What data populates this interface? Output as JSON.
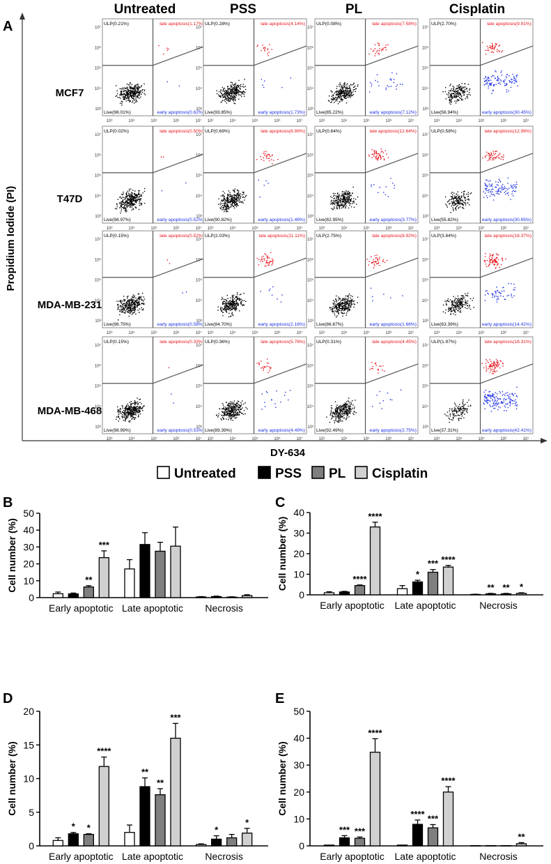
{
  "panel_letters": [
    "A",
    "B",
    "C",
    "D",
    "E"
  ],
  "flow": {
    "column_titles": [
      "Untreated",
      "PSS",
      "PL",
      "Cisplatin"
    ],
    "row_labels": [
      "MCF7",
      "T47D",
      "MDA-MB-231",
      "MDA-MB-468"
    ],
    "y_axis_label": "Propidium Iodide (PI)",
    "x_axis_label": "DY-634",
    "tick_labels": [
      "10³",
      "10⁴",
      "10⁵",
      "10⁶",
      "10⁷"
    ],
    "colors": {
      "live": "#000000",
      "late": "#e8141c",
      "early": "#1a2ee6",
      "gate": "#555555"
    },
    "quadrants": [
      [
        {
          "ulp": "ULP(0.21%)",
          "late": "late apoptosis(1.17%)",
          "live": "Live(98.01%)",
          "early": "early apoptosis(0.62%)"
        },
        {
          "ulp": "ULP(0.28%)",
          "late": "late apoptosis(4.14%)",
          "live": "Live(93.85%)",
          "early": "early apoptosis(1.73%)"
        },
        {
          "ulp": "ULP(0.08%)",
          "late": "late apoptosis(7.58%)",
          "live": "Live(85.22%)",
          "early": "early apoptosis(7.12%)"
        },
        {
          "ulp": "ULP(2.70%)",
          "late": "late apoptosis(9.91%)",
          "live": "Live(56.94%)",
          "early": "early apoptosis(30.45%)"
        }
      ],
      [
        {
          "ulp": "ULP(0.02%)",
          "late": "late apoptosis(0.50%)",
          "live": "Live(98.97%)",
          "early": "early apoptosis(0.52%)"
        },
        {
          "ulp": "ULP(0.69%)",
          "late": "late apoptosis(6.99%)",
          "live": "Live(90.82%)",
          "early": "early apoptosis(1.49%)"
        },
        {
          "ulp": "ULP(0.64%)",
          "late": "late apoptosis(12.64%)",
          "live": "Live(82.95%)",
          "early": "early apoptosis(3.77%)"
        },
        {
          "ulp": "ULP(0.58%)",
          "late": "late apoptosis(12.96%)",
          "live": "Live(55.82%)",
          "early": "early apoptosis(30.65%)"
        }
      ],
      [
        {
          "ulp": "ULP(0.15%)",
          "late": "late apoptosis(0.52%)",
          "live": "Live(98.75%)",
          "early": "early apoptosis(0.58%)"
        },
        {
          "ulp": "ULP(2.03%)",
          "late": "late apoptosis(11.11%)",
          "live": "Live(84.70%)",
          "early": "early apoptosis(2.16%)"
        },
        {
          "ulp": "ULP(2.75%)",
          "late": "late apoptosis(8.92%)",
          "live": "Live(86.67%)",
          "early": "early apoptosis(1.66%)"
        },
        {
          "ulp": "ULP(3.84%)",
          "late": "late apoptosis(18.37%)",
          "live": "Live(63.39%)",
          "early": "early apoptosis(14.41%)"
        }
      ],
      [
        {
          "ulp": "ULP(0.15%)",
          "late": "late apoptosis(0.33%)",
          "live": "Live(98.99%)",
          "early": "early apoptosis(0.53%)"
        },
        {
          "ulp": "ULP(0.36%)",
          "late": "late apoptosis(5.76%)",
          "live": "Live(89.39%)",
          "early": "early apoptosis(4.49%)"
        },
        {
          "ulp": "ULP(0.31%)",
          "late": "late apoptosis(4.45%)",
          "live": "Live(92.49%)",
          "early": "early apoptosis(2.75%)"
        },
        {
          "ulp": "ULP(1.97%)",
          "late": "late apoptosis(18.31%)",
          "live": "Live(37.31%)",
          "early": "early apoptosis(42.41%)"
        }
      ]
    ]
  },
  "legend": {
    "items": [
      {
        "label": "Untreated",
        "color": "#ffffff"
      },
      {
        "label": "PSS",
        "color": "#000000"
      },
      {
        "label": "PL",
        "color": "#7f7f7f"
      },
      {
        "label": "Cisplatin",
        "color": "#d0d0d0"
      }
    ]
  },
  "chart_data": [
    {
      "panel": "B",
      "type": "bar",
      "ylabel": "Cell number (%)",
      "ylim": [
        0,
        50
      ],
      "yticks": [
        0,
        10,
        20,
        30,
        40,
        50
      ],
      "categories": [
        "Early apoptotic",
        "Late apoptotic",
        "Necrosis"
      ],
      "series": [
        {
          "name": "Untreated",
          "values": [
            2.3,
            17.0,
            0.4
          ],
          "errors": [
            1.0,
            5.5,
            0.2
          ],
          "sig": [
            "",
            "",
            ""
          ]
        },
        {
          "name": "PSS",
          "values": [
            2.2,
            31.5,
            0.6
          ],
          "errors": [
            0.5,
            7.0,
            0.3
          ],
          "sig": [
            "",
            "",
            ""
          ]
        },
        {
          "name": "PL",
          "values": [
            6.3,
            27.5,
            0.3
          ],
          "errors": [
            0.8,
            5.3,
            0.2
          ],
          "sig": [
            "**",
            "",
            ""
          ]
        },
        {
          "name": "Cisplatin",
          "values": [
            23.7,
            30.5,
            1.2
          ],
          "errors": [
            4.0,
            11.3,
            0.5
          ],
          "sig": [
            "***",
            "",
            ""
          ]
        }
      ]
    },
    {
      "panel": "C",
      "type": "bar",
      "ylabel": "Cell number (%)",
      "ylim": [
        0,
        40
      ],
      "yticks": [
        0,
        10,
        20,
        30,
        40
      ],
      "categories": [
        "Early apoptotic",
        "Late apoptotic",
        "Necrosis"
      ],
      "series": [
        {
          "name": "Untreated",
          "values": [
            1.0,
            3.0,
            0.2
          ],
          "errors": [
            0.5,
            1.5,
            0.1
          ],
          "sig": [
            "",
            "",
            ""
          ]
        },
        {
          "name": "PSS",
          "values": [
            1.4,
            6.3,
            0.5
          ],
          "errors": [
            0.3,
            0.8,
            0.2
          ],
          "sig": [
            "",
            "*",
            "**"
          ]
        },
        {
          "name": "PL",
          "values": [
            4.5,
            11.0,
            0.5
          ],
          "errors": [
            0.3,
            1.3,
            0.2
          ],
          "sig": [
            "****",
            "***",
            "**"
          ]
        },
        {
          "name": "Cisplatin",
          "values": [
            33.0,
            13.5,
            0.7
          ],
          "errors": [
            2.3,
            0.8,
            0.3
          ],
          "sig": [
            "****",
            "****",
            "*"
          ]
        }
      ]
    },
    {
      "panel": "D",
      "type": "bar",
      "ylabel": "Cell number (%)",
      "ylim": [
        0,
        20
      ],
      "yticks": [
        0,
        5,
        10,
        15,
        20
      ],
      "categories": [
        "Early apoptotic",
        "Late apoptotic",
        "Necrosis"
      ],
      "series": [
        {
          "name": "Untreated",
          "values": [
            0.8,
            2.0,
            0.2
          ],
          "errors": [
            0.4,
            1.1,
            0.1
          ],
          "sig": [
            "",
            "",
            ""
          ]
        },
        {
          "name": "PSS",
          "values": [
            1.8,
            8.8,
            1.0
          ],
          "errors": [
            0.2,
            1.3,
            0.5
          ],
          "sig": [
            "*",
            "**",
            "*"
          ]
        },
        {
          "name": "PL",
          "values": [
            1.7,
            7.6,
            1.2
          ],
          "errors": [
            0.1,
            0.9,
            0.5
          ],
          "sig": [
            "*",
            "**",
            ""
          ]
        },
        {
          "name": "Cisplatin",
          "values": [
            11.8,
            16.0,
            1.9
          ],
          "errors": [
            1.4,
            2.2,
            0.7
          ],
          "sig": [
            "****",
            "***",
            "*"
          ]
        }
      ]
    },
    {
      "panel": "E",
      "type": "bar",
      "ylabel": "Cell number (%)",
      "ylim": [
        0,
        50
      ],
      "yticks": [
        0,
        10,
        20,
        30,
        40,
        50
      ],
      "categories": [
        "Early apoptotic",
        "Late apoptotic",
        "Necrosis"
      ],
      "series": [
        {
          "name": "Untreated",
          "values": [
            0.3,
            0.3,
            0.1
          ],
          "errors": [
            0,
            0,
            0
          ],
          "sig": [
            "",
            "",
            ""
          ]
        },
        {
          "name": "PSS",
          "values": [
            3.0,
            8.0,
            0.1
          ],
          "errors": [
            0.8,
            1.6,
            0
          ],
          "sig": [
            "***",
            "****",
            ""
          ]
        },
        {
          "name": "PL",
          "values": [
            2.8,
            6.7,
            0.1
          ],
          "errors": [
            0.5,
            1.2,
            0
          ],
          "sig": [
            "***",
            "***",
            ""
          ]
        },
        {
          "name": "Cisplatin",
          "values": [
            34.8,
            20.0,
            0.8
          ],
          "errors": [
            5.0,
            2.0,
            0.4
          ],
          "sig": [
            "****",
            "****",
            "**"
          ]
        }
      ]
    }
  ]
}
